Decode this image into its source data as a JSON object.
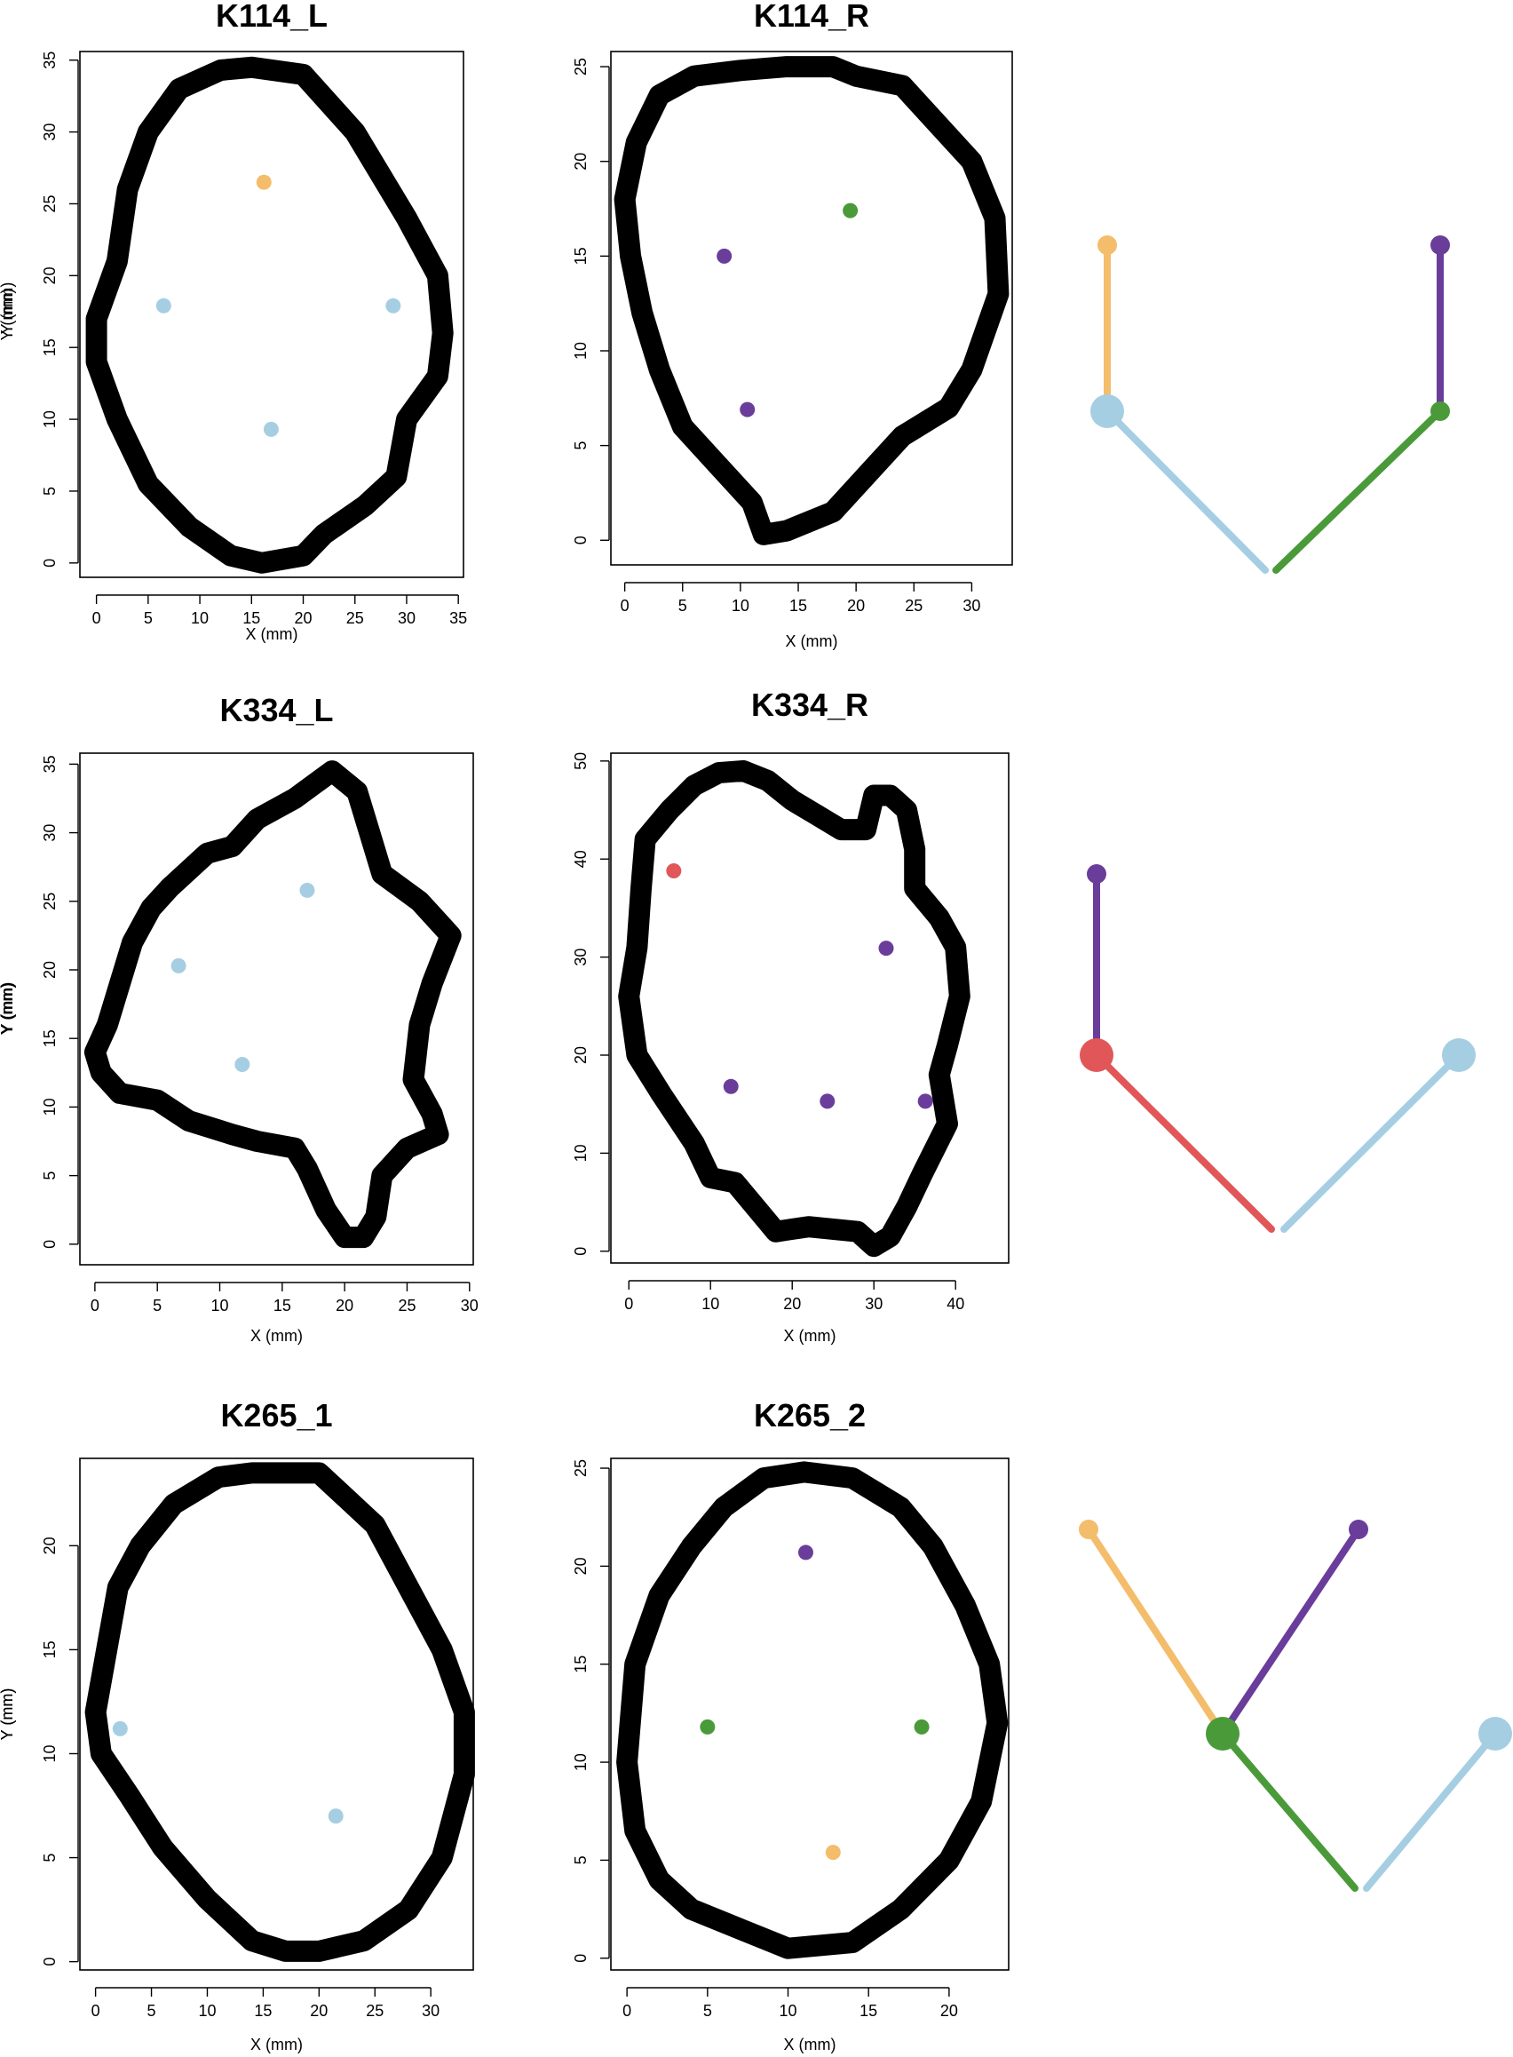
{
  "colors": {
    "light_blue": "#a6cee3",
    "orange": "#f4bd6b",
    "purple": "#6a3d9a",
    "green": "#4a9a3a",
    "red": "#e15759",
    "outline": "#000000"
  },
  "chart_data": [
    {
      "type": "scatter",
      "title": "K114_L",
      "xlabel": "X (mm)",
      "ylabel": "Y (mm)",
      "xlim": [
        0,
        35
      ],
      "ylim": [
        0,
        35
      ],
      "xticks": [
        0,
        5,
        10,
        15,
        20,
        25,
        30,
        35
      ],
      "yticks": [
        0,
        5,
        10,
        15,
        20,
        25,
        30,
        35
      ],
      "grid": false,
      "outline": [
        [
          15,
          34.5
        ],
        [
          20,
          34
        ],
        [
          25,
          30
        ],
        [
          30,
          24
        ],
        [
          33,
          20
        ],
        [
          33.5,
          16
        ],
        [
          33,
          13
        ],
        [
          30,
          10
        ],
        [
          29,
          6
        ],
        [
          26,
          4
        ],
        [
          22,
          2
        ],
        [
          20,
          0.5
        ],
        [
          16,
          0
        ],
        [
          13,
          0.5
        ],
        [
          9,
          2.5
        ],
        [
          5,
          5.5
        ],
        [
          2,
          10
        ],
        [
          0,
          14
        ],
        [
          0,
          17
        ],
        [
          2,
          21
        ],
        [
          3,
          26
        ],
        [
          5,
          30
        ],
        [
          8,
          33
        ],
        [
          12,
          34.3
        ]
      ],
      "points": [
        {
          "x": 16.2,
          "y": 26.5,
          "color": "orange"
        },
        {
          "x": 6.5,
          "y": 17.9,
          "color": "light_blue"
        },
        {
          "x": 28.7,
          "y": 17.9,
          "color": "light_blue"
        },
        {
          "x": 16.9,
          "y": 9.3,
          "color": "light_blue"
        }
      ]
    },
    {
      "type": "scatter",
      "title": "K114_R",
      "xlabel": "X (mm)",
      "ylabel": "Y (mm)",
      "xlim": [
        0,
        32.5
      ],
      "ylim": [
        0,
        25
      ],
      "xticks": [
        0,
        5,
        10,
        15,
        20,
        25,
        30
      ],
      "yticks": [
        0,
        5,
        10,
        15,
        20,
        25
      ],
      "grid": false,
      "outline": [
        [
          14,
          25
        ],
        [
          18,
          25
        ],
        [
          20,
          24.5
        ],
        [
          24,
          24
        ],
        [
          27,
          22
        ],
        [
          30,
          20
        ],
        [
          32,
          17
        ],
        [
          32.3,
          13
        ],
        [
          30,
          9
        ],
        [
          28,
          7
        ],
        [
          24,
          5.5
        ],
        [
          21,
          3.5
        ],
        [
          18,
          1.5
        ],
        [
          14,
          0.5
        ],
        [
          12,
          0.3
        ],
        [
          11,
          2
        ],
        [
          8,
          4
        ],
        [
          5,
          6
        ],
        [
          3,
          9
        ],
        [
          1.5,
          12
        ],
        [
          0.5,
          15
        ],
        [
          0,
          18
        ],
        [
          1,
          21
        ],
        [
          3,
          23.5
        ],
        [
          6,
          24.5
        ],
        [
          10,
          24.8
        ]
      ],
      "points": [
        {
          "x": 19.5,
          "y": 17.4,
          "color": "green"
        },
        {
          "x": 8.6,
          "y": 15.0,
          "color": "purple"
        },
        {
          "x": 10.6,
          "y": 6.9,
          "color": "purple"
        }
      ]
    },
    {
      "type": "scatter",
      "title": "K334_L",
      "xlabel": "X (mm)",
      "ylabel": "Y (mm)",
      "xlim": [
        0,
        30
      ],
      "ylim": [
        0,
        35
      ],
      "xticks": [
        0,
        5,
        10,
        15,
        20,
        25,
        30
      ],
      "yticks": [
        0,
        5,
        10,
        15,
        20,
        25,
        30,
        35
      ],
      "grid": false,
      "outline": [
        [
          19,
          34.5
        ],
        [
          21,
          33
        ],
        [
          22,
          30
        ],
        [
          23,
          27
        ],
        [
          26,
          25
        ],
        [
          28.5,
          22.5
        ],
        [
          27,
          19
        ],
        [
          26,
          16
        ],
        [
          25.5,
          12
        ],
        [
          27,
          9.5
        ],
        [
          27.5,
          8
        ],
        [
          25,
          7
        ],
        [
          23,
          5
        ],
        [
          22.5,
          2
        ],
        [
          21.5,
          0.5
        ],
        [
          20,
          0.5
        ],
        [
          18.5,
          2.5
        ],
        [
          17,
          5.5
        ],
        [
          16,
          7
        ],
        [
          13,
          7.5
        ],
        [
          11,
          8
        ],
        [
          7.5,
          9
        ],
        [
          5,
          10.5
        ],
        [
          2,
          11
        ],
        [
          0.5,
          12.5
        ],
        [
          0,
          14
        ],
        [
          1,
          16
        ],
        [
          2,
          19
        ],
        [
          3,
          22
        ],
        [
          4.5,
          24.5
        ],
        [
          6,
          26
        ],
        [
          9,
          28.5
        ],
        [
          11,
          29
        ],
        [
          13,
          31
        ],
        [
          16,
          32.5
        ],
        [
          17.5,
          33.5
        ]
      ],
      "points": [
        {
          "x": 17.0,
          "y": 25.8,
          "color": "light_blue"
        },
        {
          "x": 6.7,
          "y": 20.3,
          "color": "light_blue"
        },
        {
          "x": 11.8,
          "y": 13.1,
          "color": "light_blue"
        }
      ]
    },
    {
      "type": "scatter",
      "title": "K334_R",
      "xlabel": "X (mm)",
      "ylabel": "Y (mm)",
      "xlim": [
        0,
        45
      ],
      "ylim": [
        0,
        50
      ],
      "xticks": [
        0,
        10,
        20,
        30,
        40
      ],
      "yticks": [
        0,
        10,
        20,
        30,
        40,
        50
      ],
      "grid": false,
      "outline": [
        [
          14,
          49
        ],
        [
          17,
          48
        ],
        [
          20,
          46
        ],
        [
          23,
          44.5
        ],
        [
          26,
          43
        ],
        [
          29,
          43
        ],
        [
          30,
          46.5
        ],
        [
          32,
          46.5
        ],
        [
          34,
          45
        ],
        [
          35,
          41
        ],
        [
          35,
          37
        ],
        [
          38,
          34
        ],
        [
          40,
          31
        ],
        [
          40.5,
          26
        ],
        [
          39,
          21
        ],
        [
          38,
          18
        ],
        [
          39,
          13
        ],
        [
          36,
          8
        ],
        [
          34,
          4.5
        ],
        [
          32,
          1.5
        ],
        [
          30,
          0.5
        ],
        [
          28,
          2
        ],
        [
          22,
          2.5
        ],
        [
          18,
          2
        ],
        [
          16,
          4
        ],
        [
          13,
          7
        ],
        [
          10,
          7.5
        ],
        [
          8,
          11
        ],
        [
          4,
          16
        ],
        [
          1,
          20
        ],
        [
          0,
          26
        ],
        [
          1,
          31
        ],
        [
          1.5,
          37
        ],
        [
          2,
          42
        ],
        [
          5,
          45
        ],
        [
          8,
          47.5
        ],
        [
          11,
          48.8
        ]
      ],
      "points": [
        {
          "x": 5.5,
          "y": 38.8,
          "color": "red"
        },
        {
          "x": 31.5,
          "y": 30.9,
          "color": "purple"
        },
        {
          "x": 12.5,
          "y": 16.8,
          "color": "purple"
        },
        {
          "x": 24.3,
          "y": 15.3,
          "color": "purple"
        },
        {
          "x": 36.3,
          "y": 15.3,
          "color": "purple"
        }
      ]
    },
    {
      "type": "scatter",
      "title": "K265_1",
      "xlabel": "X (mm)",
      "ylabel": "Y (mm)",
      "xlim": [
        0,
        33
      ],
      "ylim": [
        0,
        24
      ],
      "xticks": [
        0,
        5,
        10,
        15,
        20,
        25,
        30
      ],
      "yticks": [
        0,
        5,
        10,
        15,
        20
      ],
      "grid": false,
      "outline": [
        [
          14,
          23.5
        ],
        [
          20,
          23.5
        ],
        [
          25,
          21
        ],
        [
          28,
          18
        ],
        [
          31,
          15
        ],
        [
          33,
          12
        ],
        [
          33,
          9
        ],
        [
          31,
          5
        ],
        [
          28,
          2.5
        ],
        [
          24,
          1
        ],
        [
          20,
          0.5
        ],
        [
          17,
          0.5
        ],
        [
          14,
          1
        ],
        [
          10,
          3
        ],
        [
          6,
          5.5
        ],
        [
          3,
          8
        ],
        [
          0.5,
          10
        ],
        [
          0,
          12
        ],
        [
          1,
          15
        ],
        [
          2,
          18
        ],
        [
          4,
          20
        ],
        [
          7,
          22
        ],
        [
          11,
          23.3
        ]
      ],
      "points": [
        {
          "x": 2.2,
          "y": 11.2,
          "color": "light_blue"
        },
        {
          "x": 21.5,
          "y": 7.0,
          "color": "light_blue"
        }
      ]
    },
    {
      "type": "scatter",
      "title": "K265_2",
      "xlabel": "X (mm)",
      "ylabel": "Y (mm)",
      "xlim": [
        0,
        23
      ],
      "ylim": [
        0,
        25
      ],
      "xticks": [
        0,
        5,
        10,
        15,
        20
      ],
      "yticks": [
        0,
        5,
        10,
        15,
        20,
        25
      ],
      "grid": false,
      "outline": [
        [
          11,
          24.8
        ],
        [
          14,
          24.5
        ],
        [
          17,
          23
        ],
        [
          19,
          21
        ],
        [
          21,
          18
        ],
        [
          22.5,
          15
        ],
        [
          23,
          12
        ],
        [
          22,
          8
        ],
        [
          20,
          5
        ],
        [
          17,
          2.5
        ],
        [
          14,
          0.8
        ],
        [
          10,
          0.5
        ],
        [
          7,
          1.5
        ],
        [
          4,
          2.5
        ],
        [
          2,
          4
        ],
        [
          0.5,
          6.5
        ],
        [
          0,
          10
        ],
        [
          0.5,
          15
        ],
        [
          2,
          18.5
        ],
        [
          4,
          21
        ],
        [
          6,
          23
        ],
        [
          8.5,
          24.5
        ]
      ],
      "points": [
        {
          "x": 11.1,
          "y": 20.7,
          "color": "purple"
        },
        {
          "x": 5.0,
          "y": 11.8,
          "color": "green"
        },
        {
          "x": 18.3,
          "y": 11.8,
          "color": "green"
        },
        {
          "x": 12.8,
          "y": 5.4,
          "color": "orange"
        }
      ]
    }
  ],
  "trees": [
    {
      "segments": [
        {
          "from": "root_left",
          "to": "node_blue",
          "color": "light_blue"
        },
        {
          "from": "node_blue",
          "to": "leaf_orange",
          "color": "orange"
        },
        {
          "from": "root_right",
          "to": "node_green",
          "color": "green"
        },
        {
          "from": "node_green",
          "to": "leaf_purple",
          "color": "purple"
        }
      ],
      "nodes": [
        {
          "id": "node_blue",
          "color": "light_blue",
          "size": "large"
        },
        {
          "id": "leaf_orange",
          "color": "orange",
          "size": "small"
        },
        {
          "id": "node_green",
          "color": "green",
          "size": "small"
        },
        {
          "id": "leaf_purple",
          "color": "purple",
          "size": "small"
        }
      ]
    },
    {
      "segments": [
        {
          "from": "root_left",
          "to": "node_red",
          "color": "red"
        },
        {
          "from": "node_red",
          "to": "leaf_purple",
          "color": "purple"
        },
        {
          "from": "root_right",
          "to": "leaf_blue",
          "color": "light_blue"
        }
      ],
      "nodes": [
        {
          "id": "node_red",
          "color": "red",
          "size": "large"
        },
        {
          "id": "leaf_purple",
          "color": "purple",
          "size": "small"
        },
        {
          "id": "leaf_blue",
          "color": "light_blue",
          "size": "large"
        }
      ]
    },
    {
      "segments": [
        {
          "from": "root_left",
          "to": "node_green",
          "color": "green"
        },
        {
          "from": "node_green",
          "to": "leaf_orange",
          "color": "orange"
        },
        {
          "from": "node_green",
          "to": "leaf_purple",
          "color": "purple"
        },
        {
          "from": "root_right",
          "to": "leaf_blue",
          "color": "light_blue"
        }
      ],
      "nodes": [
        {
          "id": "node_green",
          "color": "green",
          "size": "large"
        },
        {
          "id": "leaf_orange",
          "color": "orange",
          "size": "small"
        },
        {
          "id": "leaf_purple",
          "color": "purple",
          "size": "small"
        },
        {
          "id": "leaf_blue",
          "color": "light_blue",
          "size": "large"
        }
      ]
    }
  ]
}
